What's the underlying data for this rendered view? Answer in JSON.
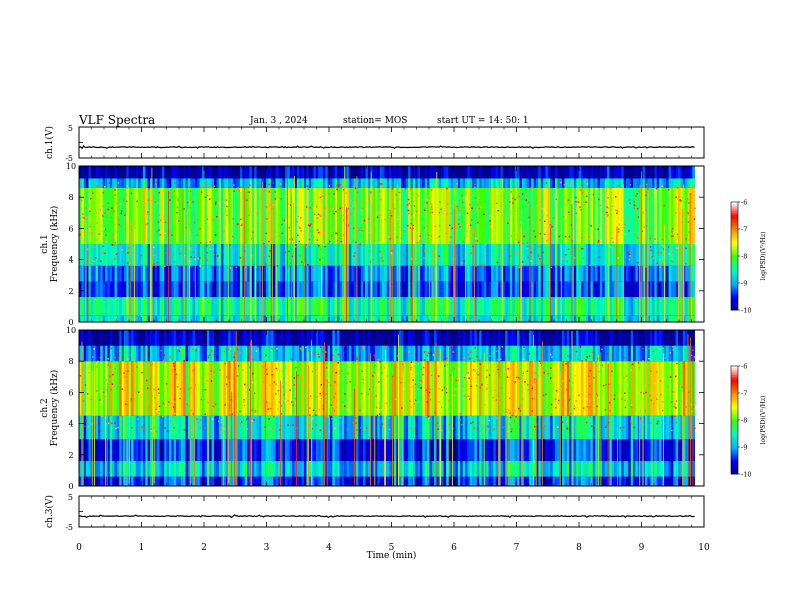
{
  "header": {
    "title": "VLF Spectra",
    "date": "Jan. 3 , 2024",
    "station": "station= MOS",
    "start": "start UT =   14: 50: 1"
  },
  "chart_data": [
    {
      "type": "line",
      "panel": "ch1-waveform",
      "ylabel": "ch.1(V)",
      "ylim": [
        -5,
        5
      ],
      "yticks": [
        "5",
        "-5"
      ],
      "series": [
        {
          "values_description_free": true,
          "y": [
            -1.5,
            -1.5
          ]
        }
      ],
      "xlim": [
        0,
        10
      ]
    },
    {
      "type": "heatmap",
      "panel": "ch1-spectrogram",
      "ylabel": "ch.1\nFrequency (kHz)",
      "ylabel_lines": [
        "ch.1",
        "Frequency (kHz)"
      ],
      "ylim": [
        0,
        10
      ],
      "yticks": [
        "0",
        "2",
        "4",
        "6",
        "8",
        "10"
      ],
      "xlim": [
        0,
        9.85
      ],
      "colorbar": {
        "label": "log(PSD)(V²/Hz)",
        "range": [
          -10,
          -6
        ],
        "ticks": [
          "-6",
          "-7",
          "-8",
          "-9",
          "-10"
        ]
      },
      "bands": [
        {
          "from": 0,
          "to": 0.4,
          "level": -8.6
        },
        {
          "from": 0.4,
          "to": 1.6,
          "level": -8.4
        },
        {
          "from": 1.6,
          "to": 2.6,
          "level": -9.3
        },
        {
          "from": 2.6,
          "to": 3.6,
          "level": -9.1
        },
        {
          "from": 3.6,
          "to": 5.0,
          "level": -8.6
        },
        {
          "from": 5.0,
          "to": 8.6,
          "level": -7.9
        },
        {
          "from": 8.6,
          "to": 9.2,
          "level": -8.9
        },
        {
          "from": 9.2,
          "to": 10,
          "level": -9.8
        }
      ]
    },
    {
      "type": "heatmap",
      "panel": "ch2-spectrogram",
      "ylabel_lines": [
        "ch.2",
        "Frequency (kHz)"
      ],
      "ylim": [
        0,
        10
      ],
      "yticks": [
        "0",
        "2",
        "4",
        "6",
        "8",
        "10"
      ],
      "xlim": [
        0,
        9.85
      ],
      "colorbar": {
        "label": "log(PSD)(V²/Hz)",
        "range": [
          -10,
          -6
        ],
        "ticks": [
          "-6",
          "-7",
          "-8",
          "-9",
          "-10"
        ]
      },
      "bands": [
        {
          "from": 0,
          "to": 0.6,
          "level": -9.4
        },
        {
          "from": 0.6,
          "to": 1.6,
          "level": -8.8
        },
        {
          "from": 1.6,
          "to": 3.0,
          "level": -9.4
        },
        {
          "from": 3.0,
          "to": 4.5,
          "level": -8.7
        },
        {
          "from": 4.5,
          "to": 8.0,
          "level": -7.6
        },
        {
          "from": 8.0,
          "to": 9.0,
          "level": -8.9
        },
        {
          "from": 9.0,
          "to": 10,
          "level": -9.8
        }
      ]
    },
    {
      "type": "line",
      "panel": "ch3-waveform",
      "ylabel": "ch.3(V)",
      "ylim": [
        -5,
        5
      ],
      "yticks": [
        "5",
        "-5"
      ],
      "series": [
        {
          "y": [
            -1.5,
            -1.5
          ]
        }
      ],
      "xlim": [
        0,
        10
      ]
    }
  ],
  "xaxis": {
    "label": "Time (min)",
    "ticks": [
      "0",
      "1",
      "2",
      "3",
      "4",
      "5",
      "6",
      "7",
      "8",
      "9",
      "10"
    ],
    "xlim": [
      0,
      10
    ]
  },
  "colors": {
    "cmap": [
      "#00008c",
      "#0000ff",
      "#00b4ff",
      "#00ffb4",
      "#3cff00",
      "#ffff00",
      "#ff8c00",
      "#ff0000",
      "#ffffff"
    ]
  }
}
